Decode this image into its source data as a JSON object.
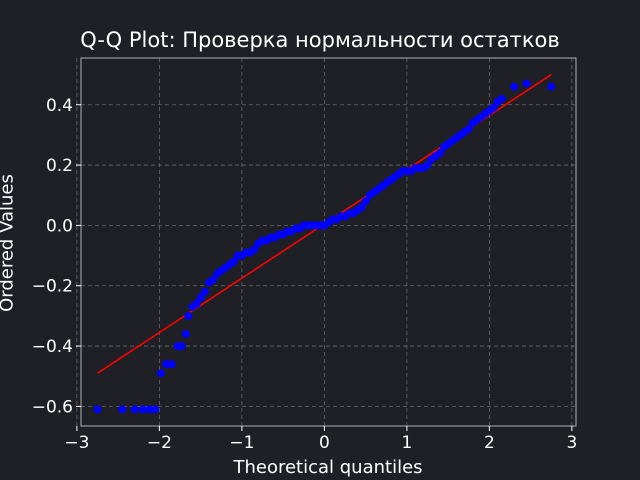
{
  "chart_data": {
    "type": "scatter",
    "title": "Q-Q Plot: Проверка нормальности остатков",
    "xlabel": "Theoretical quantiles",
    "ylabel": "Ordered Values",
    "xlim": [
      -2.95,
      3.05
    ],
    "ylim": [
      -0.665,
      0.555
    ],
    "x_ticks": [
      -3,
      -2,
      -1,
      0,
      1,
      2,
      3
    ],
    "x_tick_labels": [
      "−3",
      "−2",
      "−1",
      "0",
      "1",
      "2",
      "3"
    ],
    "y_ticks": [
      -0.6,
      -0.4,
      -0.2,
      0.0,
      0.2,
      0.4
    ],
    "y_tick_labels": [
      "−0.6",
      "−0.4",
      "−0.2",
      "0.0",
      "0.2",
      "0.4"
    ],
    "grid": true,
    "series": [
      {
        "kind": "points",
        "color": "#0000ff",
        "x": [
          -2.75,
          -2.45,
          -2.3,
          -2.2,
          -2.12,
          -2.05,
          -1.98,
          -1.92,
          -1.85,
          -1.78,
          -1.73,
          -1.68,
          -1.65,
          -1.6,
          -1.55,
          -1.5,
          -1.45,
          -1.4,
          -1.35,
          -1.3,
          -1.25,
          -1.2,
          -1.15,
          -1.1,
          -1.05,
          -1.0,
          -0.95,
          -0.9,
          -0.85,
          -0.8,
          -0.75,
          -0.7,
          -0.65,
          -0.6,
          -0.55,
          -0.5,
          -0.45,
          -0.4,
          -0.35,
          -0.3,
          -0.25,
          -0.2,
          -0.15,
          -0.1,
          -0.05,
          0.0,
          0.05,
          0.1,
          0.15,
          0.2,
          0.25,
          0.3,
          0.35,
          0.4,
          0.45,
          0.5,
          0.55,
          0.6,
          0.65,
          0.7,
          0.75,
          0.8,
          0.85,
          0.9,
          0.95,
          1.0,
          1.05,
          1.1,
          1.15,
          1.2,
          1.25,
          1.3,
          1.35,
          1.4,
          1.45,
          1.5,
          1.55,
          1.6,
          1.65,
          1.7,
          1.75,
          1.8,
          1.85,
          1.9,
          1.95,
          2.0,
          2.05,
          2.1,
          2.15,
          2.3,
          2.45,
          2.75
        ],
        "y": [
          -0.61,
          -0.61,
          -0.61,
          -0.61,
          -0.61,
          -0.61,
          -0.49,
          -0.46,
          -0.46,
          -0.4,
          -0.4,
          -0.36,
          -0.3,
          -0.27,
          -0.26,
          -0.24,
          -0.22,
          -0.19,
          -0.18,
          -0.16,
          -0.15,
          -0.14,
          -0.13,
          -0.12,
          -0.1,
          -0.1,
          -0.09,
          -0.09,
          -0.08,
          -0.06,
          -0.05,
          -0.05,
          -0.04,
          -0.04,
          -0.03,
          -0.03,
          -0.02,
          -0.02,
          -0.01,
          -0.01,
          0.0,
          0.0,
          0.0,
          0.0,
          0.0,
          0.0,
          0.01,
          0.02,
          0.02,
          0.03,
          0.03,
          0.04,
          0.04,
          0.05,
          0.06,
          0.08,
          0.1,
          0.11,
          0.12,
          0.13,
          0.14,
          0.15,
          0.16,
          0.17,
          0.18,
          0.18,
          0.18,
          0.19,
          0.19,
          0.19,
          0.2,
          0.22,
          0.23,
          0.24,
          0.26,
          0.27,
          0.28,
          0.29,
          0.3,
          0.31,
          0.32,
          0.34,
          0.35,
          0.36,
          0.37,
          0.38,
          0.39,
          0.41,
          0.42,
          0.46,
          0.47,
          0.46
        ]
      },
      {
        "kind": "fit-line",
        "color": "#ff0000",
        "x": [
          -2.75,
          2.75
        ],
        "y": [
          -0.49,
          0.5
        ]
      }
    ]
  },
  "colors": {
    "background": "#1f2026",
    "axes_frame": "#b0b0b0",
    "grid": "#6a6a6a",
    "text": "#ffffff"
  }
}
